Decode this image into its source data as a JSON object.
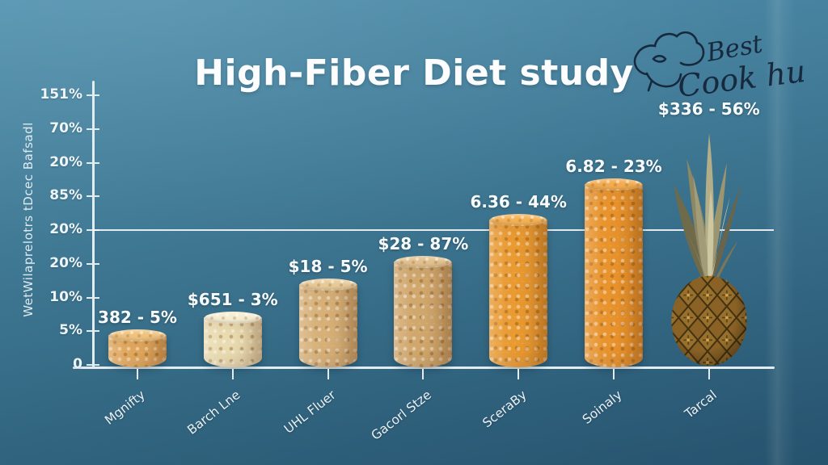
{
  "title": "High-Fiber Diet study",
  "logo": {
    "icon": "chef-hat-icon",
    "line1": "Best",
    "line2": "Cook hub",
    "color": "#16293e"
  },
  "colors": {
    "background_top": "#4e90ae",
    "background_bottom": "#2c6080",
    "axis": "#e3edf1",
    "text": "#ffffff",
    "gridline": "#ffffff"
  },
  "chart_data": {
    "type": "bar",
    "title": "High-Fiber Diet study",
    "xlabel": "",
    "ylabel": "WetWilaprelotrs tDcec Bafsadl",
    "y_ticks": [
      "151%",
      "70%",
      "20%",
      "85%",
      "20%",
      "20%",
      "10%",
      "5%",
      "0"
    ],
    "gridline_tick_index": 4,
    "grid": "single-horizontal-reference-line",
    "legend": "none",
    "categories": [
      "Mgnifty",
      "Barch Lne",
      "UHL Fluer",
      "Gacorl Stze",
      "SceraBy",
      "Soinaly",
      "Tarcal"
    ],
    "bars": [
      {
        "category": "Mgnifty",
        "value_label": "382 - 5%",
        "height_pct": 11.3,
        "kind": "grain",
        "color": "#e2a85c",
        "top_color": "#efc37e"
      },
      {
        "category": "Barch Lne",
        "value_label": "$651 - 3%",
        "height_pct": 17.5,
        "kind": "grain",
        "color": "#eadbb0",
        "top_color": "#f6ecd0"
      },
      {
        "category": "UHL Fluer",
        "value_label": "$18 - 5%",
        "height_pct": 29.0,
        "kind": "grain",
        "color": "#d6b077",
        "top_color": "#e7ca98"
      },
      {
        "category": "Gacorl Stze",
        "value_label": "$28 - 87%",
        "height_pct": 37.0,
        "kind": "grain",
        "color": "#d0a76c",
        "top_color": "#e2c08e"
      },
      {
        "category": "SceraBy",
        "value_label": "6.36 - 44%",
        "height_pct": 51.5,
        "kind": "grain",
        "color": "#e99a31",
        "top_color": "#f4b257"
      },
      {
        "category": "Soinaly",
        "value_label": "6.82 - 23%",
        "height_pct": 64.0,
        "kind": "grain",
        "color": "#e8932c",
        "top_color": "#f3ac51"
      },
      {
        "category": "Tarcal",
        "value_label": "$336 - 56%",
        "height_pct": 81.7,
        "kind": "pineapple",
        "color": "#8a6226",
        "top_color": "#b3ad88"
      }
    ]
  }
}
